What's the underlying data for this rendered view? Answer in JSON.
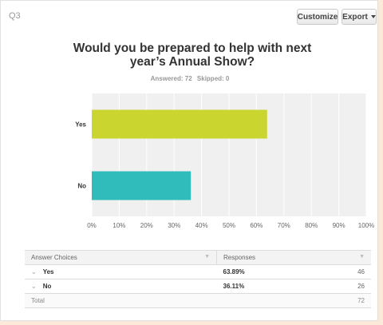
{
  "question": {
    "number": "Q3",
    "title": "Would you be prepared to help with next year’s Annual Show?",
    "answered_label": "Answered: 72",
    "skipped_label": "Skipped: 0"
  },
  "toolbar": {
    "customize_label": "Customize",
    "export_label": "Export"
  },
  "colors": {
    "yes_bar": "#cbd530",
    "no_bar": "#2fbcbb",
    "plot_bg": "#f0f0f0"
  },
  "chart_data": {
    "type": "bar",
    "orientation": "horizontal",
    "categories": [
      "Yes",
      "No"
    ],
    "values": [
      63.89,
      36.11
    ],
    "xlim": [
      0,
      100
    ],
    "x_ticks": [
      "0%",
      "10%",
      "20%",
      "30%",
      "40%",
      "50%",
      "60%",
      "70%",
      "80%",
      "90%",
      "100%"
    ],
    "grid": true
  },
  "table": {
    "headers": [
      "Answer Choices",
      "Responses"
    ],
    "rows": [
      {
        "choice": "Yes",
        "percent": "63.89%",
        "count": "46"
      },
      {
        "choice": "No",
        "percent": "36.11%",
        "count": "26"
      }
    ],
    "total_label": "Total",
    "total_count": "72"
  }
}
